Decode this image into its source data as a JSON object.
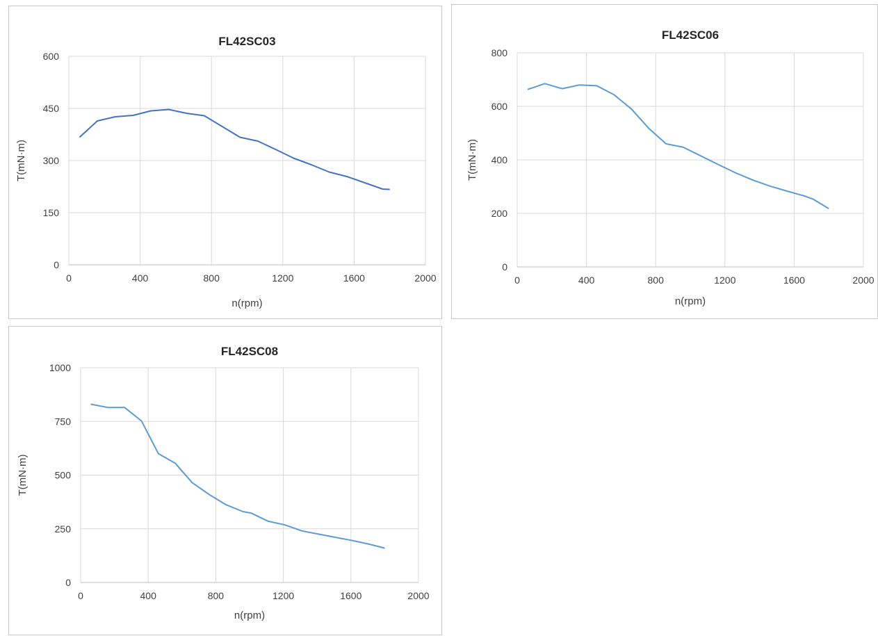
{
  "chart_data": [
    {
      "type": "line",
      "title": "FL42SC03",
      "xlabel": "n(rpm)",
      "ylabel": "T(mN·m)",
      "xlim": [
        0,
        2000
      ],
      "ylim": [
        0,
        600
      ],
      "xticks": [
        0,
        400,
        800,
        1200,
        1600,
        2000
      ],
      "yticks": [
        0,
        150,
        300,
        450,
        600
      ],
      "grid": true,
      "color": "#4472c4",
      "series": [
        {
          "x": [
            60,
            160,
            260,
            360,
            460,
            560,
            660,
            760,
            860,
            960,
            1060,
            1160,
            1260,
            1360,
            1460,
            1560,
            1660,
            1760,
            1800
          ],
          "y": [
            367,
            414,
            426,
            430,
            443,
            447,
            436,
            429,
            398,
            367,
            356,
            332,
            307,
            288,
            267,
            254,
            236,
            218,
            217
          ]
        }
      ]
    },
    {
      "type": "line",
      "title": "FL42SC06",
      "xlabel": "n(rpm)",
      "ylabel": "T(mN·m)",
      "xlim": [
        0,
        2000
      ],
      "ylim": [
        0,
        800
      ],
      "xticks": [
        0,
        400,
        800,
        1200,
        1600,
        2000
      ],
      "yticks": [
        0,
        200,
        400,
        600,
        800
      ],
      "grid": true,
      "color": "#5b9bd5",
      "series": [
        {
          "x": [
            60,
            160,
            260,
            360,
            460,
            560,
            660,
            760,
            860,
            960,
            1060,
            1160,
            1260,
            1360,
            1460,
            1560,
            1660,
            1710,
            1800
          ],
          "y": [
            663,
            685,
            666,
            680,
            677,
            643,
            590,
            518,
            460,
            447,
            415,
            383,
            352,
            325,
            302,
            283,
            265,
            253,
            218
          ]
        }
      ]
    },
    {
      "type": "line",
      "title": "FL42SC08",
      "xlabel": "n(rpm)",
      "ylabel": "T(mN·m)",
      "xlim": [
        0,
        2000
      ],
      "ylim": [
        0,
        1000
      ],
      "xticks": [
        0,
        400,
        800,
        1200,
        1600,
        2000
      ],
      "yticks": [
        0,
        250,
        500,
        750,
        1000
      ],
      "grid": true,
      "color": "#5b9bd5",
      "series": [
        {
          "x": [
            60,
            160,
            260,
            360,
            460,
            560,
            660,
            760,
            860,
            960,
            1010,
            1110,
            1210,
            1310,
            1410,
            1510,
            1610,
            1710,
            1800
          ],
          "y": [
            830,
            815,
            815,
            752,
            600,
            555,
            465,
            410,
            362,
            330,
            323,
            285,
            268,
            240,
            225,
            210,
            195,
            178,
            160
          ]
        }
      ]
    }
  ]
}
